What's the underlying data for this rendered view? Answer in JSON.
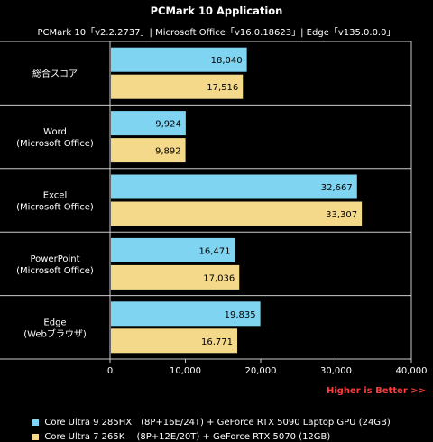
{
  "title": "PCMark 10 Application",
  "subtitle": "PCMark 10「v2.2.2737」| Microsoft Office「v16.0.18623」| Edge「v135.0.0.0」",
  "higher_is_better": "Higher is Better >>",
  "colors": {
    "series1": "#7fd4f2",
    "series2": "#f5d98b",
    "background": "#000000",
    "grid": "#cccccc"
  },
  "chart_data": {
    "type": "bar",
    "orientation": "horizontal",
    "categories": [
      [
        "総合スコア"
      ],
      [
        "Word",
        "(Microsoft Office)"
      ],
      [
        "Excel",
        "(Microsoft Office)"
      ],
      [
        "PowerPoint",
        "(Microsoft Office)"
      ],
      [
        "Edge",
        "(Webブラウザ)"
      ]
    ],
    "series": [
      {
        "name": "Core Ultra 9 285HX　(8P+16E/24T) + GeForce RTX 5090 Laptop GPU (24GB)",
        "values": [
          18040,
          9924,
          32667,
          16471,
          19835
        ],
        "labels": [
          "18,040",
          "9,924",
          "32,667",
          "16,471",
          "19,835"
        ]
      },
      {
        "name": "Core Ultra 7 265K　 (8P+12E/20T) + GeForce RTX 5070 (12GB)",
        "values": [
          17516,
          9892,
          33307,
          17036,
          16771
        ],
        "labels": [
          "17,516",
          "9,892",
          "33,307",
          "17,036",
          "16,771"
        ]
      }
    ],
    "x_ticks": [
      "0",
      "10,000",
      "20,000",
      "30,000",
      "40,000"
    ],
    "xlim": [
      0,
      40000
    ],
    "grid": true,
    "legend_position": "bottom-left"
  }
}
